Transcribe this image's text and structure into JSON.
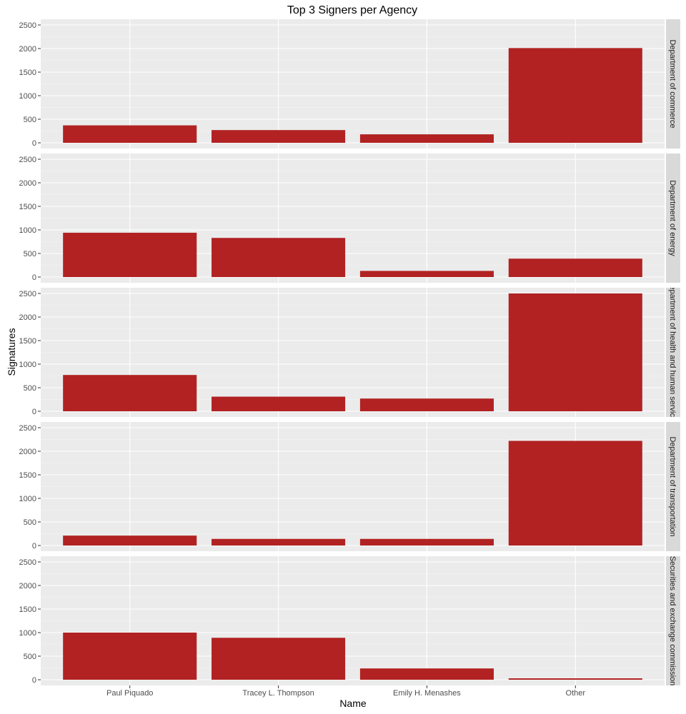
{
  "colors": {
    "bar": "#b22222",
    "panel_background": "#ebebeb",
    "grid_major": "#ffffff",
    "grid_minor": "#f5f5f5",
    "strip_background": "#d9d9d9",
    "tick": "#333333"
  },
  "chart_data": {
    "type": "bar",
    "title": "Top 3 Signers per Agency",
    "xlabel": "Name",
    "ylabel": "Signatures",
    "categories": [
      "Paul Piquado",
      "Tracey L. Thompson",
      "Emily H. Menashes",
      "Other"
    ],
    "ylim": [
      0,
      2500
    ],
    "yticks": [
      0,
      500,
      1000,
      1500,
      2000,
      2500
    ],
    "grid": true,
    "facet": "row",
    "facets": [
      {
        "name": "Department of commerce",
        "values": [
          370,
          270,
          180,
          2010
        ]
      },
      {
        "name": "Department of energy",
        "values": [
          940,
          830,
          130,
          390
        ]
      },
      {
        "name": "Department of health and human services",
        "values": [
          770,
          310,
          270,
          2500
        ]
      },
      {
        "name": "Department of transportation",
        "values": [
          210,
          140,
          140,
          2220
        ]
      },
      {
        "name": "Securities and exchange commission",
        "values": [
          1000,
          890,
          240,
          30
        ]
      }
    ]
  }
}
